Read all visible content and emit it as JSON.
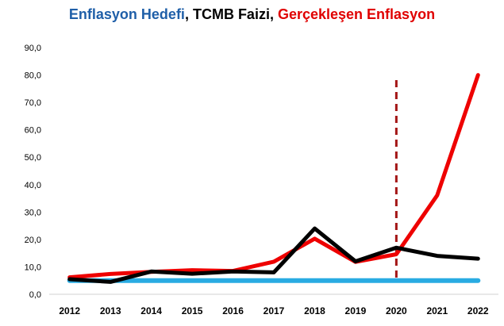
{
  "title": {
    "part1": "Enflasyon Hedefi",
    "sep1": ", ",
    "part2": "TCMB Faizi",
    "sep2": ", ",
    "part3": "Gerçekleşen Enflasyon",
    "colors": {
      "part1": "#1f5fa8",
      "part2": "#000000",
      "part3": "#e00000"
    }
  },
  "chart_data": {
    "type": "line",
    "title": "Enflasyon Hedefi, TCMB Faizi, Gerçekleşen Enflasyon",
    "x": [
      "2012",
      "2013",
      "2014",
      "2015",
      "2016",
      "2017",
      "2018",
      "2019",
      "2020",
      "2021",
      "2022"
    ],
    "ylim": [
      0,
      90
    ],
    "yticks": [
      "0,0",
      "10,0",
      "20,0",
      "30,0",
      "40,0",
      "50,0",
      "60,0",
      "70,0",
      "80,0",
      "90,0"
    ],
    "grid": false,
    "series": [
      {
        "name": "Enflasyon Hedefi",
        "color": "#29abe2",
        "values": [
          5,
          5,
          5,
          5,
          5,
          5,
          5,
          5,
          5,
          5,
          5
        ]
      },
      {
        "name": "Gerçekleşen Enflasyon",
        "color": "#ee0000",
        "values": [
          6.2,
          7.4,
          8.2,
          8.8,
          8.5,
          11.9,
          20.3,
          11.8,
          14.6,
          36.1,
          80
        ]
      },
      {
        "name": "TCMB Faizi",
        "color": "#000000",
        "values": [
          5.5,
          4.5,
          8.3,
          7.5,
          8.3,
          8,
          24,
          12,
          17,
          14,
          13
        ]
      }
    ],
    "marker_line": {
      "x": "2020",
      "color": "#a31515",
      "style": "dashed"
    }
  }
}
